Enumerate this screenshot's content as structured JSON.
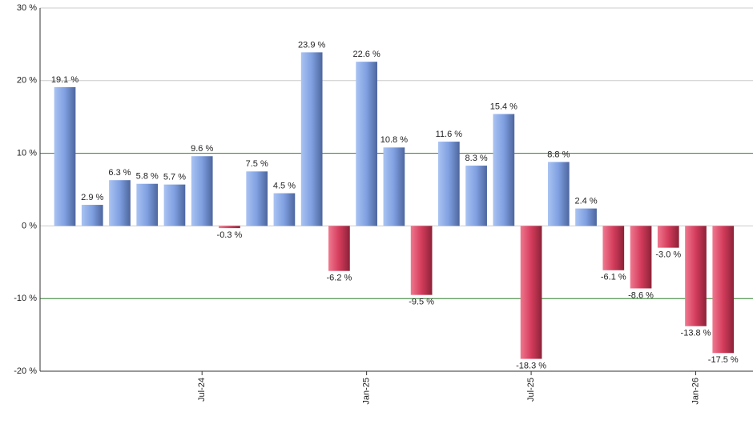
{
  "chart_data": {
    "type": "bar",
    "categories": [
      null,
      null,
      null,
      null,
      null,
      "Jul-24",
      null,
      null,
      null,
      null,
      null,
      "Jan-25",
      null,
      null,
      null,
      null,
      null,
      "Jul-25",
      null,
      null,
      null,
      null,
      null,
      "Jan-26",
      null
    ],
    "values": [
      19.1,
      2.9,
      6.3,
      5.8,
      5.7,
      9.6,
      -0.3,
      7.5,
      4.5,
      23.9,
      -6.2,
      22.6,
      10.8,
      -9.5,
      11.6,
      8.3,
      15.4,
      -18.3,
      8.8,
      2.4,
      -6.1,
      -8.6,
      -3.0,
      -13.8,
      -17.5
    ],
    "value_labels": [
      "19.1 %",
      "2.9 %",
      "6.3 %",
      "5.8 %",
      "5.7 %",
      "9.6 %",
      "-0.3 %",
      "7.5 %",
      "4.5 %",
      "23.9 %",
      "-6.2 %",
      "22.6 %",
      "10.8 %",
      "-9.5 %",
      "11.6 %",
      "8.3 %",
      "15.4 %",
      "-18.3 %",
      "8.8 %",
      "2.4 %",
      "-6.1 %",
      "-8.6 %",
      "-3.0 %",
      "-13.8 %",
      "-17.5 %"
    ],
    "color_positive": "#7f9fe0",
    "color_negative": "#d43c5c",
    "ylim": [
      -20,
      30
    ],
    "yticks": [
      {
        "value": -20,
        "label": "-20 %"
      },
      {
        "value": -10,
        "label": "-10 %"
      },
      {
        "value": 0,
        "label": "0 %"
      },
      {
        "value": 10,
        "label": "10 %"
      },
      {
        "value": 20,
        "label": "20 %"
      },
      {
        "value": 30,
        "label": "30 %"
      }
    ],
    "grid": true,
    "grid_colors": [
      "#cccccc",
      "#2e7d2e",
      "#cccccc",
      "#2e7d2e",
      "#cccccc",
      "#cccccc"
    ]
  }
}
